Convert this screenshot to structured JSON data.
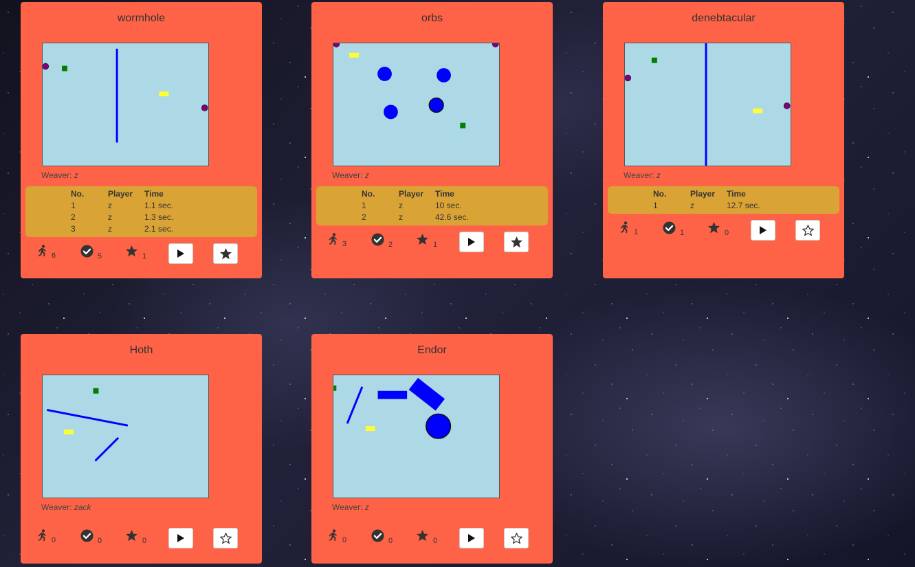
{
  "labels": {
    "weaver_prefix": "Weaver:",
    "col_no": "No.",
    "col_player": "Player",
    "col_time": "Time"
  },
  "colors": {
    "card": "#ff6347",
    "scores_bg": "#daa336",
    "preview_bg": "#add8e6",
    "wall": "#0000ff",
    "goal": "#008000",
    "player": "#ffff33",
    "portal": "#800080"
  },
  "icons": {
    "plays": "runner-icon",
    "completions": "check-circle-icon",
    "stars": "star-icon",
    "play_button": "play-icon",
    "favorite_filled": "star-filled-icon",
    "favorite_outline": "star-outline-icon"
  },
  "cards": [
    {
      "title": "wormhole",
      "weaver": "z",
      "scores": [
        {
          "no": "1",
          "player": "z",
          "time": "1.1 sec."
        },
        {
          "no": "2",
          "player": "z",
          "time": "1.3 sec."
        },
        {
          "no": "3",
          "player": "z",
          "time": "2.1 sec."
        }
      ],
      "plays": "6",
      "completions": "5",
      "stars": "1",
      "favorited": true
    },
    {
      "title": "orbs",
      "weaver": "z",
      "scores": [
        {
          "no": "1",
          "player": "z",
          "time": "10 sec."
        },
        {
          "no": "2",
          "player": "z",
          "time": "42.6 sec."
        }
      ],
      "plays": "3",
      "completions": "2",
      "stars": "1",
      "favorited": true
    },
    {
      "title": "denebtacular",
      "weaver": "z",
      "scores": [
        {
          "no": "1",
          "player": "z",
          "time": "12.7 sec."
        }
      ],
      "plays": "1",
      "completions": "1",
      "stars": "0",
      "favorited": false
    },
    {
      "title": "Hoth",
      "weaver": "zack",
      "scores": [],
      "plays": "0",
      "completions": "0",
      "stars": "0",
      "favorited": false
    },
    {
      "title": "Endor",
      "weaver": "z",
      "scores": [],
      "plays": "0",
      "completions": "0",
      "stars": "0",
      "favorited": false
    }
  ]
}
